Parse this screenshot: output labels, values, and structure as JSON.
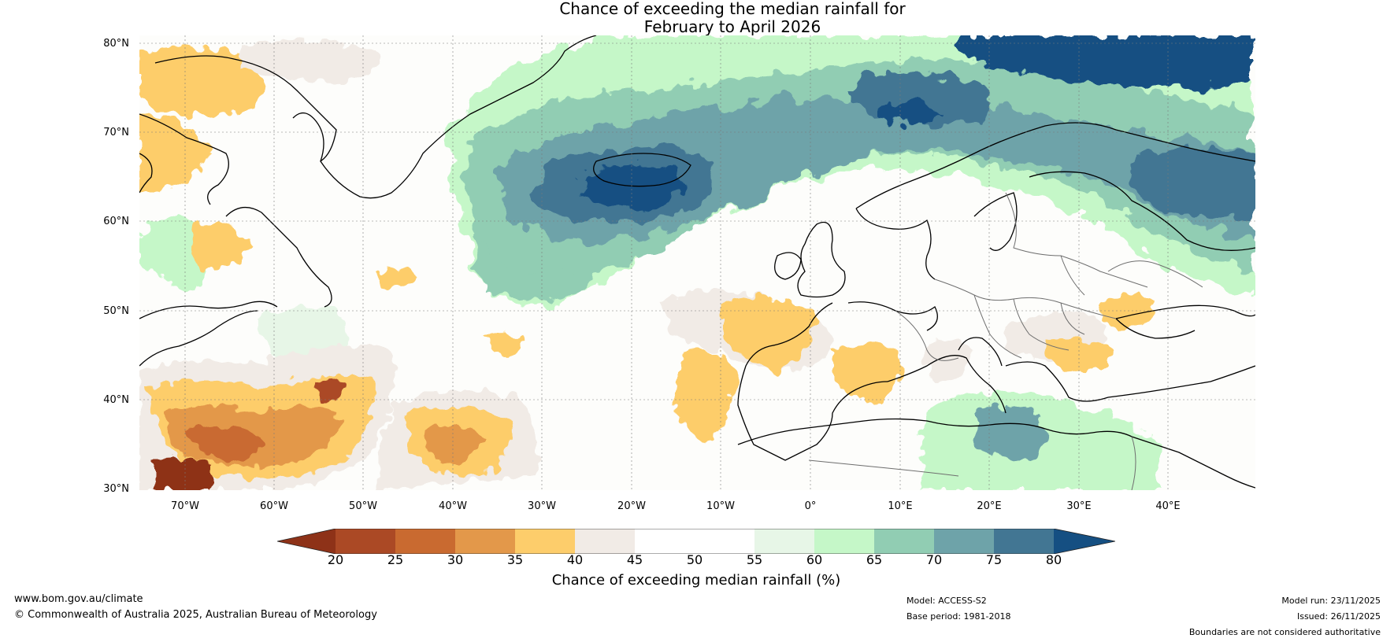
{
  "title": {
    "line1": "Chance of exceeding the median rainfall for",
    "line2": "February to April 2026"
  },
  "map": {
    "lat_labels": [
      "80°N",
      "70°N",
      "60°N",
      "50°N",
      "40°N",
      "30°N"
    ],
    "lon_labels": [
      "70°W",
      "60°W",
      "50°W",
      "40°W",
      "30°W",
      "20°W",
      "10°W",
      "0°",
      "10°E",
      "20°E",
      "30°E",
      "40°E"
    ]
  },
  "colorbar": {
    "ticks": [
      "20",
      "25",
      "30",
      "35",
      "40",
      "45",
      "50",
      "55",
      "60",
      "65",
      "70",
      "75",
      "80"
    ],
    "colors": [
      "#8e3218",
      "#ab4925",
      "#c96a30",
      "#e3984a",
      "#fdcd6b",
      "#f1ebe6",
      "#ffffff",
      "#ffffff",
      "#e7f6e7",
      "#c5f7c8",
      "#91cdb3",
      "#6ea3a9",
      "#427693",
      "#154f82"
    ],
    "label": "Chance of exceeding median rainfall (%)"
  },
  "footer": {
    "website": "www.bom.gov.au/climate",
    "copyright": "© Commonwealth of Australia 2025, Australian Bureau of Meteorology",
    "model": "Model: ACCESS-S2",
    "base_period": "Base period: 1981-2018",
    "model_run": "Model run: 23/11/2025",
    "issued": "Issued: 26/11/2025",
    "disclaimer": "Boundaries are not considered authoritative"
  }
}
